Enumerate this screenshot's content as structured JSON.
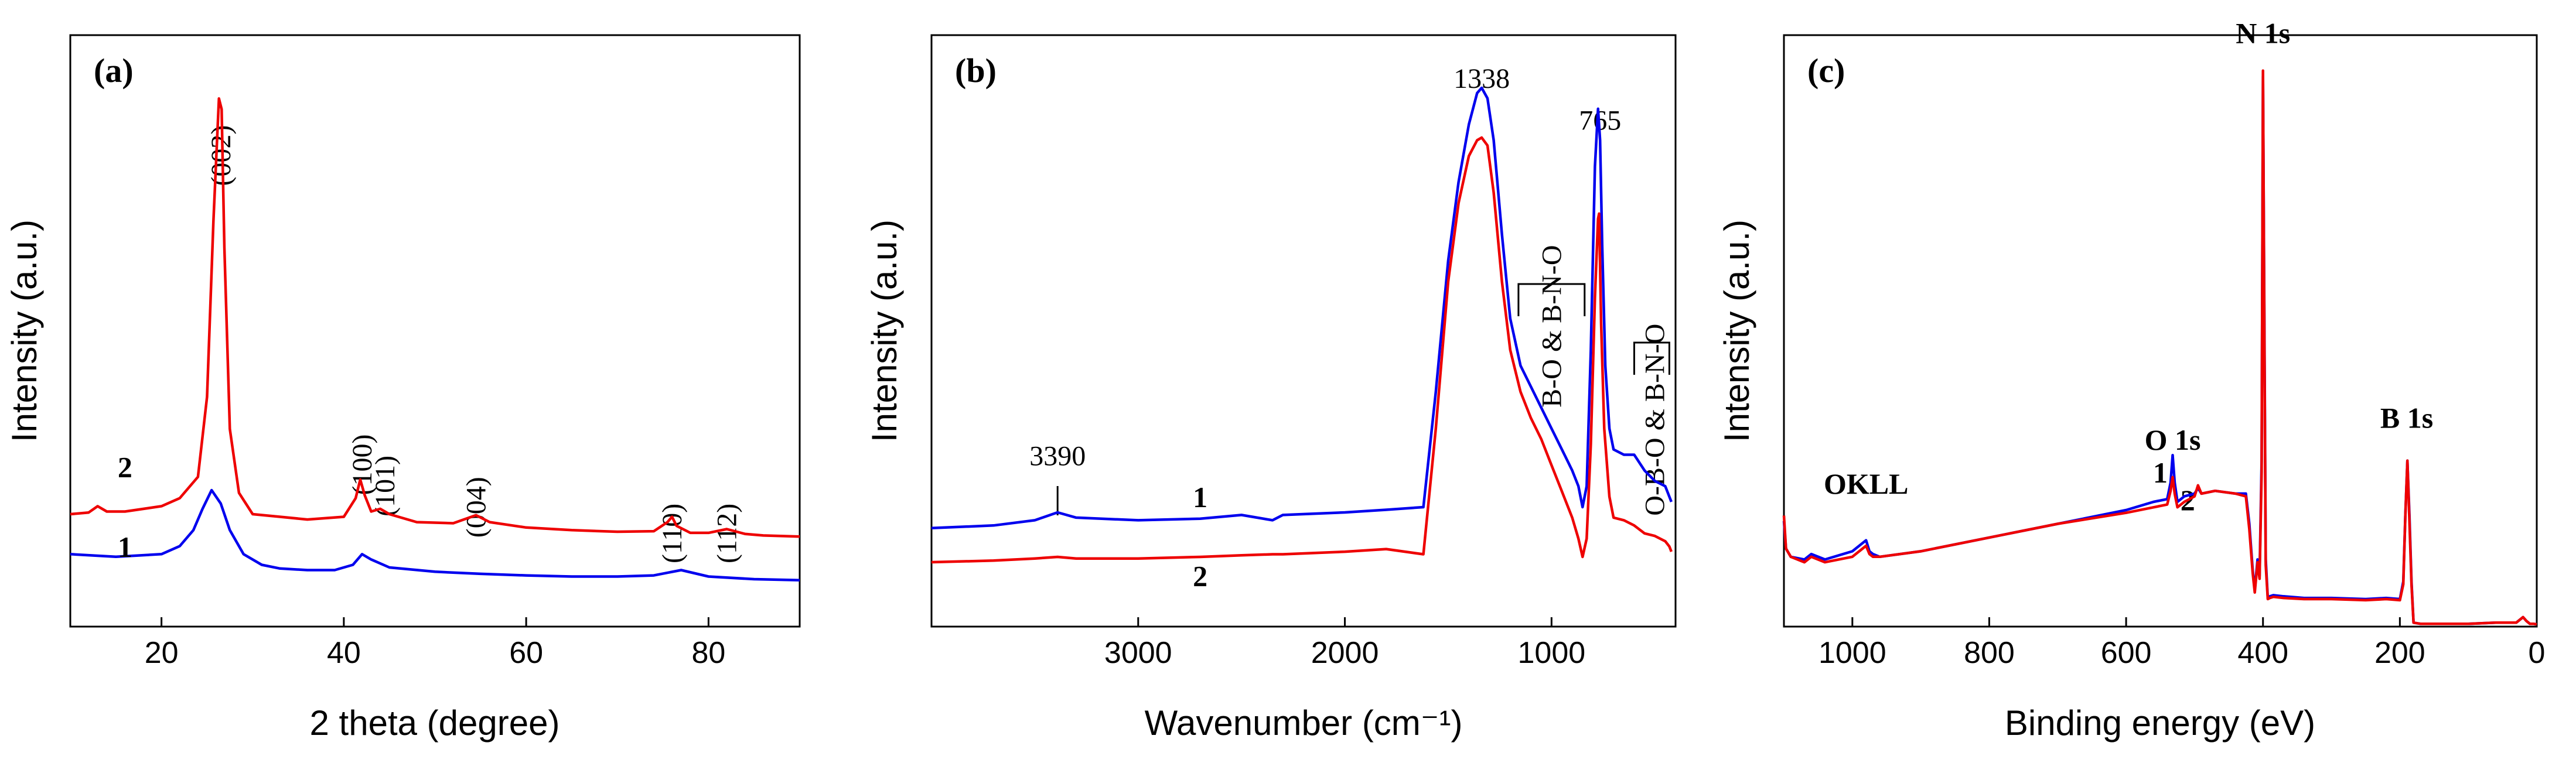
{
  "chart_data": [
    {
      "type": "line",
      "panel_label": "(a)",
      "xlabel": "2 theta (degree)",
      "ylabel": "Intensity (a.u.)",
      "xlim": [
        10,
        90
      ],
      "ylim": [
        0,
        100
      ],
      "x_ticks": [
        20,
        40,
        60,
        80
      ],
      "annotations": [
        {
          "text": "(002)",
          "x": 26.5,
          "y": 93,
          "rotate": true
        },
        {
          "text": "(100)",
          "x": 42,
          "y": 35,
          "rotate": true
        },
        {
          "text": "(101)",
          "x": 44.5,
          "y": 31,
          "rotate": true
        },
        {
          "text": "(004)",
          "x": 54.5,
          "y": 27,
          "rotate": true
        },
        {
          "text": "(110)",
          "x": 76,
          "y": 22,
          "rotate": true
        },
        {
          "text": "(112)",
          "x": 82,
          "y": 22,
          "rotate": true
        }
      ],
      "series": [
        {
          "name": "1",
          "color": "#0000ee",
          "label_pos": [
            16,
            12
          ],
          "x": [
            10,
            15,
            20,
            22,
            23.5,
            24.5,
            25.5,
            26.5,
            27.5,
            29,
            31,
            33,
            36,
            39,
            41,
            42,
            43,
            45,
            50,
            55,
            60,
            65,
            70,
            74,
            77,
            80,
            85,
            90
          ],
          "values": [
            12.5,
            12,
            12.5,
            14,
            17,
            21,
            24.5,
            22,
            17,
            12.5,
            10.5,
            9.8,
            9.5,
            9.5,
            10.5,
            12.5,
            11.5,
            10,
            9.2,
            8.8,
            8.5,
            8.3,
            8.3,
            8.5,
            9.5,
            8.3,
            7.8,
            7.6
          ]
        },
        {
          "name": "2",
          "color": "#ee0000",
          "label_pos": [
            16,
            27
          ],
          "x": [
            10,
            12,
            13,
            14,
            16,
            20,
            22,
            24,
            25,
            25.7,
            26.3,
            26.6,
            26.9,
            27.5,
            28.5,
            30,
            33,
            36,
            40,
            41.3,
            41.8,
            42.3,
            43,
            44,
            45,
            48,
            52,
            54.5,
            56,
            60,
            65,
            70,
            74,
            75.5,
            76,
            76.5,
            78,
            80,
            82,
            84,
            86,
            90
          ],
          "values": [
            20,
            20.3,
            21.5,
            20.5,
            20.5,
            21.5,
            23,
            27,
            42,
            75,
            98,
            96,
            70,
            36,
            24,
            20,
            19.5,
            19,
            19.5,
            23,
            26.5,
            23.5,
            20.5,
            21,
            20,
            18.5,
            18.3,
            19.8,
            18.5,
            17.5,
            17,
            16.7,
            16.8,
            18.5,
            19.5,
            17.8,
            16.5,
            16.5,
            17.2,
            16.3,
            16,
            15.8
          ]
        }
      ]
    },
    {
      "type": "line",
      "panel_label": "(b)",
      "xlabel": "Wavenumber (cm⁻¹)",
      "ylabel": "Intensity (a.u.)",
      "xlim": [
        4000,
        400
      ],
      "ylim": [
        0,
        100
      ],
      "x_ticks": [
        3000,
        2000,
        1000
      ],
      "annotations": [
        {
          "text": "1338",
          "x": 1338,
          "y": 100
        },
        {
          "text": "765",
          "x": 765,
          "y": 92
        },
        {
          "text": "3390",
          "x": 3390,
          "y": 28
        },
        {
          "text": "B-O & B-N-O",
          "x": 1000,
          "y": 70,
          "rotate": true
        },
        {
          "text": "O-B-O & B-N-O",
          "x": 500,
          "y": 55,
          "rotate": true
        }
      ],
      "series": [
        {
          "name": "1",
          "color": "#0000ee",
          "label_pos": [
            2700,
            20
          ],
          "x": [
            4000,
            3700,
            3500,
            3390,
            3300,
            3000,
            2700,
            2500,
            2350,
            2300,
            2000,
            1800,
            1620,
            1560,
            1500,
            1450,
            1400,
            1360,
            1338,
            1310,
            1280,
            1240,
            1200,
            1150,
            1100,
            1050,
            1000,
            950,
            900,
            870,
            850,
            830,
            810,
            790,
            775,
            765,
            755,
            740,
            720,
            700,
            650,
            600,
            550,
            500,
            450,
            430,
            420
          ],
          "values": [
            16,
            16.5,
            17.5,
            19,
            18,
            17.5,
            17.8,
            18.5,
            17.5,
            18.5,
            19,
            19.5,
            20,
            42,
            67,
            82,
            93,
            99,
            100,
            98,
            90,
            72,
            56,
            47,
            43,
            39,
            35,
            31,
            27,
            24,
            20,
            24,
            50,
            85,
            96,
            90,
            70,
            47,
            35,
            31,
            30,
            30,
            27,
            25,
            24,
            22,
            21
          ]
        },
        {
          "name": "2",
          "color": "#ee0000",
          "label_pos": [
            2700,
            5
          ],
          "x": [
            4000,
            3700,
            3500,
            3390,
            3300,
            3000,
            2700,
            2500,
            2350,
            2300,
            2000,
            1800,
            1620,
            1560,
            1500,
            1450,
            1400,
            1360,
            1338,
            1310,
            1280,
            1240,
            1200,
            1150,
            1100,
            1050,
            1000,
            950,
            900,
            870,
            850,
            830,
            810,
            790,
            775,
            770,
            760,
            745,
            720,
            700,
            650,
            600,
            550,
            500,
            450,
            430,
            420
          ],
          "values": [
            9.5,
            9.8,
            10.2,
            10.5,
            10.2,
            10.2,
            10.5,
            10.8,
            11,
            11,
            11.5,
            12,
            11,
            35,
            63,
            78,
            87,
            90,
            90.5,
            89,
            80,
            63,
            50,
            42,
            37,
            33,
            28,
            23,
            18,
            14,
            10.5,
            14,
            32,
            60,
            75,
            76,
            55,
            35,
            22,
            18,
            17.5,
            16.5,
            15,
            14.5,
            13.5,
            12.5,
            11.5
          ]
        }
      ]
    },
    {
      "type": "line",
      "panel_label": "(c)",
      "xlabel": "Binding energy (eV)",
      "ylabel": "Intensity (a.u.)",
      "xlim": [
        1100,
        0
      ],
      "ylim": [
        0,
        100
      ],
      "x_ticks": [
        1000,
        800,
        600,
        400,
        200,
        0
      ],
      "annotations": [
        {
          "text": "N 1s",
          "x": 400,
          "y": 106,
          "bold": true
        },
        {
          "text": "O 1s",
          "x": 532,
          "y": 32,
          "bold": true
        },
        {
          "text": "B 1s",
          "x": 190,
          "y": 36,
          "bold": true
        },
        {
          "text": "OKLL",
          "x": 980,
          "y": 24,
          "bold": true
        },
        {
          "text": "1",
          "x": 550,
          "y": 26,
          "bold": true
        },
        {
          "text": "2",
          "x": 510,
          "y": 21,
          "bold": true
        }
      ],
      "series": [
        {
          "name": "1",
          "color": "#0000ee",
          "x": [
            1100,
            1097,
            1090,
            1070,
            1060,
            1040,
            1000,
            990,
            980,
            975,
            970,
            960,
            900,
            800,
            700,
            600,
            560,
            540,
            535,
            532,
            529,
            525,
            515,
            500,
            495,
            490,
            470,
            440,
            425,
            420,
            415,
            412,
            408,
            405,
            402,
            400,
            398,
            396,
            393,
            390,
            385,
            370,
            340,
            300,
            250,
            220,
            200,
            195,
            192,
            189,
            186,
            183,
            180,
            170,
            150,
            120,
            100,
            60,
            30,
            20,
            15,
            10,
            5,
            0
          ],
          "values": [
            19,
            14,
            12.5,
            12,
            13,
            12,
            13.5,
            14.5,
            15.5,
            13.5,
            13,
            12.5,
            13.5,
            16,
            18.5,
            21,
            22.5,
            23,
            26,
            31,
            26,
            22.5,
            23.5,
            24,
            25,
            24,
            24.5,
            24,
            24,
            18.5,
            10,
            6.5,
            12,
            9,
            30,
            100,
            55,
            12,
            5,
            5.3,
            5.5,
            5.3,
            5,
            5,
            4.8,
            5,
            4.8,
            8,
            20,
            30,
            20,
            8,
            0.5,
            0.3,
            0.3,
            0.3,
            0.3,
            0.5,
            0.5,
            1.5,
            0.8,
            0.3,
            0.3,
            0.2
          ]
        },
        {
          "name": "2",
          "color": "#ee0000",
          "x": [
            1100,
            1097,
            1090,
            1070,
            1060,
            1040,
            1000,
            990,
            980,
            975,
            970,
            960,
            900,
            800,
            700,
            600,
            560,
            540,
            535,
            532,
            529,
            525,
            515,
            500,
            495,
            490,
            470,
            440,
            425,
            420,
            415,
            412,
            408,
            405,
            402,
            400,
            398,
            396,
            393,
            390,
            385,
            370,
            340,
            300,
            250,
            220,
            200,
            195,
            192,
            189,
            186,
            183,
            180,
            170,
            150,
            120,
            100,
            60,
            30,
            20,
            15,
            10,
            5,
            0
          ],
          "values": [
            20,
            14,
            12.5,
            11.5,
            12.5,
            11.5,
            12.5,
            13.5,
            14.5,
            13,
            12.5,
            12.5,
            13.5,
            16,
            18.5,
            20.5,
            21.5,
            22,
            24.5,
            27,
            24,
            21.5,
            22.5,
            23.5,
            25.5,
            24,
            24.5,
            24,
            23.5,
            17.5,
            9.5,
            6,
            11.5,
            8.5,
            28,
            101,
            52,
            11,
            4.8,
            5,
            5.2,
            5,
            4.8,
            4.8,
            4.6,
            4.8,
            4.6,
            7.5,
            20,
            30,
            19,
            7.5,
            0.5,
            0.3,
            0.3,
            0.3,
            0.3,
            0.5,
            0.5,
            1.5,
            0.8,
            0.3,
            0.3,
            0.2
          ]
        }
      ]
    }
  ]
}
